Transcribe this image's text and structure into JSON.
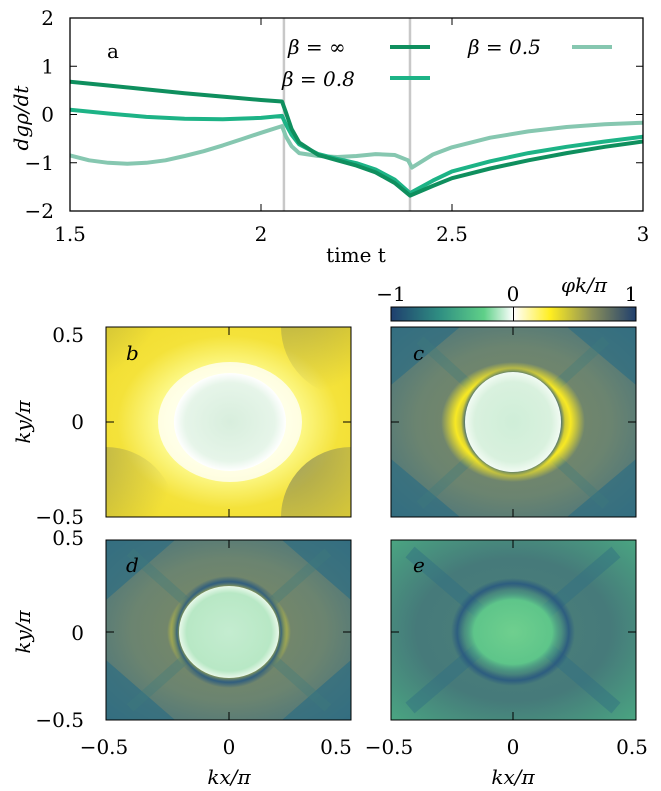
{
  "colors": {
    "beta_inf": "#0f8f5e",
    "beta_08": "#1db386",
    "beta_05": "#86c7b0",
    "vline": "#c8c8c8",
    "cmap": [
      "#1f3f6e",
      "#2f8f82",
      "#5fd088",
      "#ffffff",
      "#ffee20",
      "#8a8f5a",
      "#1f3f6e"
    ]
  },
  "chart_data": [
    {
      "type": "line",
      "panel_label": "a",
      "xlabel": "time t",
      "ylabel": "dgρ/dt",
      "xlim": [
        1.5,
        3.0
      ],
      "ylim": [
        -2.0,
        2.0
      ],
      "xticks": [
        1.5,
        2.0,
        2.5,
        3.0
      ],
      "xtick_labels": [
        "1.5",
        "2",
        "2.5",
        "3"
      ],
      "yticks": [
        -2,
        -1,
        0,
        1,
        2
      ],
      "ytick_labels": [
        "−2",
        "−1",
        "0",
        "1",
        "2"
      ],
      "vlines": [
        2.06,
        2.39
      ],
      "legend_position": "top",
      "series": [
        {
          "name": "β = ∞",
          "x": [
            1.5,
            1.6,
            1.7,
            1.8,
            1.9,
            2.0,
            2.055,
            2.065,
            2.08,
            2.1,
            2.15,
            2.2,
            2.25,
            2.3,
            2.35,
            2.39,
            2.45,
            2.5,
            2.6,
            2.7,
            2.8,
            2.9,
            3.0
          ],
          "y": [
            0.68,
            0.6,
            0.52,
            0.44,
            0.37,
            0.3,
            0.27,
            0.05,
            -0.3,
            -0.58,
            -0.84,
            -0.95,
            -1.06,
            -1.2,
            -1.42,
            -1.68,
            -1.48,
            -1.32,
            -1.12,
            -0.95,
            -0.8,
            -0.67,
            -0.56
          ]
        },
        {
          "name": "β = 0.8",
          "x": [
            1.5,
            1.6,
            1.7,
            1.8,
            1.9,
            2.0,
            2.055,
            2.065,
            2.08,
            2.1,
            2.15,
            2.2,
            2.25,
            2.3,
            2.35,
            2.39,
            2.45,
            2.5,
            2.6,
            2.7,
            2.8,
            2.9,
            3.0
          ],
          "y": [
            0.1,
            0.02,
            -0.05,
            -0.09,
            -0.1,
            -0.07,
            -0.03,
            -0.2,
            -0.42,
            -0.62,
            -0.82,
            -0.92,
            -1.01,
            -1.14,
            -1.35,
            -1.63,
            -1.37,
            -1.18,
            -0.97,
            -0.8,
            -0.67,
            -0.56,
            -0.46
          ]
        },
        {
          "name": "β = 0.5",
          "x": [
            1.5,
            1.55,
            1.6,
            1.65,
            1.7,
            1.75,
            1.8,
            1.85,
            1.9,
            1.95,
            2.0,
            2.055,
            2.065,
            2.08,
            2.1,
            2.15,
            2.2,
            2.25,
            2.3,
            2.35,
            2.385,
            2.395,
            2.45,
            2.5,
            2.6,
            2.7,
            2.8,
            2.9,
            3.0
          ],
          "y": [
            -0.85,
            -0.95,
            -1.0,
            -1.02,
            -1.0,
            -0.95,
            -0.86,
            -0.76,
            -0.64,
            -0.51,
            -0.38,
            -0.24,
            -0.45,
            -0.66,
            -0.8,
            -0.86,
            -0.88,
            -0.86,
            -0.82,
            -0.84,
            -0.95,
            -1.1,
            -0.83,
            -0.68,
            -0.48,
            -0.35,
            -0.26,
            -0.2,
            -0.17
          ]
        }
      ]
    },
    {
      "type": "heatmap",
      "panels": [
        "b",
        "c",
        "d",
        "e"
      ],
      "xlabel": "kx/π",
      "ylabel": "ky/π",
      "xlim": [
        -0.5,
        0.5
      ],
      "ylim": [
        -0.5,
        0.5
      ],
      "xtick_labels": [
        "−0.5",
        "0",
        "0.5"
      ],
      "ytick_labels": [
        "0.5",
        "0",
        "−0.5"
      ],
      "colorbar": {
        "label": "φk/π",
        "range": [
          -1,
          1
        ],
        "tick_labels": [
          "−1",
          "0",
          "1"
        ]
      }
    }
  ]
}
